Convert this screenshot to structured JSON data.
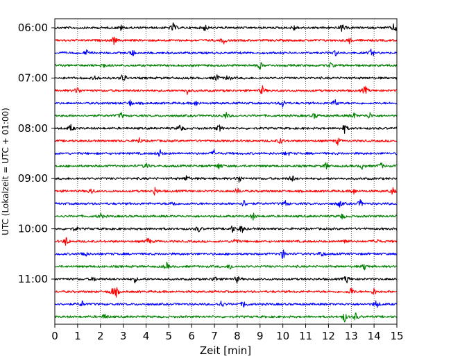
{
  "chart_data": {
    "type": "line",
    "xlabel": "Zeit  [min]",
    "ylabel": "UTC (Lokalzeit = UTC + 01:00)",
    "xlim": [
      0,
      15
    ],
    "x_ticks": [
      0,
      1,
      2,
      3,
      4,
      5,
      6,
      7,
      8,
      9,
      10,
      11,
      12,
      13,
      14,
      15
    ],
    "y_tick_labels": [
      "06:00",
      "07:00",
      "08:00",
      "09:00",
      "10:00",
      "11:00"
    ],
    "trace_colors": [
      "#000000",
      "#ff0000",
      "#0000ff",
      "#008000"
    ],
    "grid": "vertical dotted",
    "traces": [
      {
        "start": "06:00",
        "events": [
          [
            5.2,
            1.4
          ],
          [
            6.6,
            1.0
          ],
          [
            10.5,
            0.8
          ],
          [
            12.6,
            1.2
          ],
          [
            14.9,
            1.6
          ],
          [
            2.9,
            0.7
          ]
        ]
      },
      {
        "start": "06:15",
        "events": [
          [
            2.6,
            1.1
          ],
          [
            7.4,
            1.0
          ],
          [
            12.9,
            0.9
          ]
        ]
      },
      {
        "start": "06:30",
        "events": [
          [
            1.4,
            0.7
          ],
          [
            3.4,
            1.0
          ],
          [
            12.3,
            0.8
          ],
          [
            13.9,
            1.3
          ]
        ]
      },
      {
        "start": "06:45",
        "events": [
          [
            2.1,
            0.9
          ],
          [
            9.0,
            1.0
          ],
          [
            12.1,
            0.7
          ]
        ]
      },
      {
        "start": "07:00",
        "events": [
          [
            1.8,
            0.7
          ],
          [
            3.0,
            1.5
          ],
          [
            7.1,
            1.1
          ],
          [
            7.6,
            1.0
          ]
        ]
      },
      {
        "start": "07:15",
        "events": [
          [
            1.0,
            1.2
          ],
          [
            5.8,
            0.9
          ],
          [
            9.1,
            1.2
          ],
          [
            13.6,
            1.3
          ]
        ]
      },
      {
        "start": "07:30",
        "events": [
          [
            3.3,
            0.8
          ],
          [
            6.2,
            0.7
          ],
          [
            10.0,
            1.2
          ],
          [
            12.3,
            1.1
          ]
        ]
      },
      {
        "start": "07:45",
        "events": [
          [
            2.9,
            0.9
          ],
          [
            7.5,
            1.0
          ],
          [
            11.4,
            0.8
          ],
          [
            13.1,
            0.9
          ],
          [
            13.8,
            0.9
          ]
        ]
      },
      {
        "start": "08:00",
        "events": [
          [
            0.7,
            1.0
          ],
          [
            5.5,
            1.2
          ],
          [
            7.2,
            1.0
          ],
          [
            12.7,
            1.2
          ]
        ]
      },
      {
        "start": "08:15",
        "events": [
          [
            3.7,
            0.8
          ],
          [
            9.9,
            0.9
          ],
          [
            12.4,
            1.0
          ]
        ]
      },
      {
        "start": "08:30",
        "events": [
          [
            4.6,
            1.1
          ],
          [
            7.0,
            1.0
          ],
          [
            10.2,
            0.7
          ]
        ]
      },
      {
        "start": "08:45",
        "events": [
          [
            4.0,
            1.0
          ],
          [
            7.2,
            1.0
          ],
          [
            11.9,
            1.0
          ],
          [
            13.5,
            0.9
          ],
          [
            14.3,
            0.9
          ]
        ]
      },
      {
        "start": "09:00",
        "events": [
          [
            5.8,
            1.0
          ],
          [
            8.1,
            1.2
          ],
          [
            10.4,
            1.1
          ]
        ]
      },
      {
        "start": "09:15",
        "events": [
          [
            1.6,
            0.9
          ],
          [
            4.4,
            1.2
          ],
          [
            8.0,
            0.9
          ],
          [
            13.1,
            0.8
          ],
          [
            14.8,
            1.0
          ]
        ]
      },
      {
        "start": "09:30",
        "events": [
          [
            5.2,
            0.9
          ],
          [
            8.3,
            1.0
          ],
          [
            10.1,
            0.9
          ],
          [
            12.5,
            1.0
          ],
          [
            13.4,
            1.0
          ]
        ]
      },
      {
        "start": "09:45",
        "events": [
          [
            2.0,
            0.8
          ],
          [
            8.7,
            0.9
          ],
          [
            12.6,
            0.8
          ]
        ]
      },
      {
        "start": "10:00",
        "events": [
          [
            0.9,
            0.7
          ],
          [
            6.3,
            0.9
          ],
          [
            7.8,
            1.0
          ],
          [
            8.2,
            1.2
          ]
        ]
      },
      {
        "start": "10:15",
        "events": [
          [
            0.5,
            1.3
          ],
          [
            4.1,
            1.1
          ],
          [
            7.9,
            1.0
          ],
          [
            12.7,
            0.9
          ],
          [
            14.1,
            0.9
          ]
        ]
      },
      {
        "start": "10:30",
        "events": [
          [
            1.3,
            1.1
          ],
          [
            10.0,
            1.5
          ],
          [
            11.7,
            1.0
          ]
        ]
      },
      {
        "start": "10:45",
        "events": [
          [
            4.9,
            1.0
          ],
          [
            7.7,
            0.9
          ],
          [
            13.6,
            1.1
          ]
        ]
      },
      {
        "start": "11:00",
        "events": [
          [
            1.7,
            0.7
          ],
          [
            3.5,
            0.9
          ],
          [
            7.0,
            0.9
          ],
          [
            8.0,
            0.9
          ],
          [
            12.8,
            1.1
          ]
        ]
      },
      {
        "start": "11:15",
        "events": [
          [
            2.5,
            1.1
          ],
          [
            2.7,
            1.1
          ],
          [
            13.0,
            1.2
          ],
          [
            14.0,
            1.0
          ]
        ]
      },
      {
        "start": "11:30",
        "events": [
          [
            1.2,
            0.8
          ],
          [
            7.3,
            1.0
          ],
          [
            8.3,
            1.0
          ],
          [
            14.1,
            1.2
          ]
        ]
      },
      {
        "start": "11:45",
        "events": [
          [
            2.2,
            0.9
          ],
          [
            12.7,
            1.4
          ],
          [
            13.2,
            1.0
          ]
        ]
      }
    ]
  }
}
